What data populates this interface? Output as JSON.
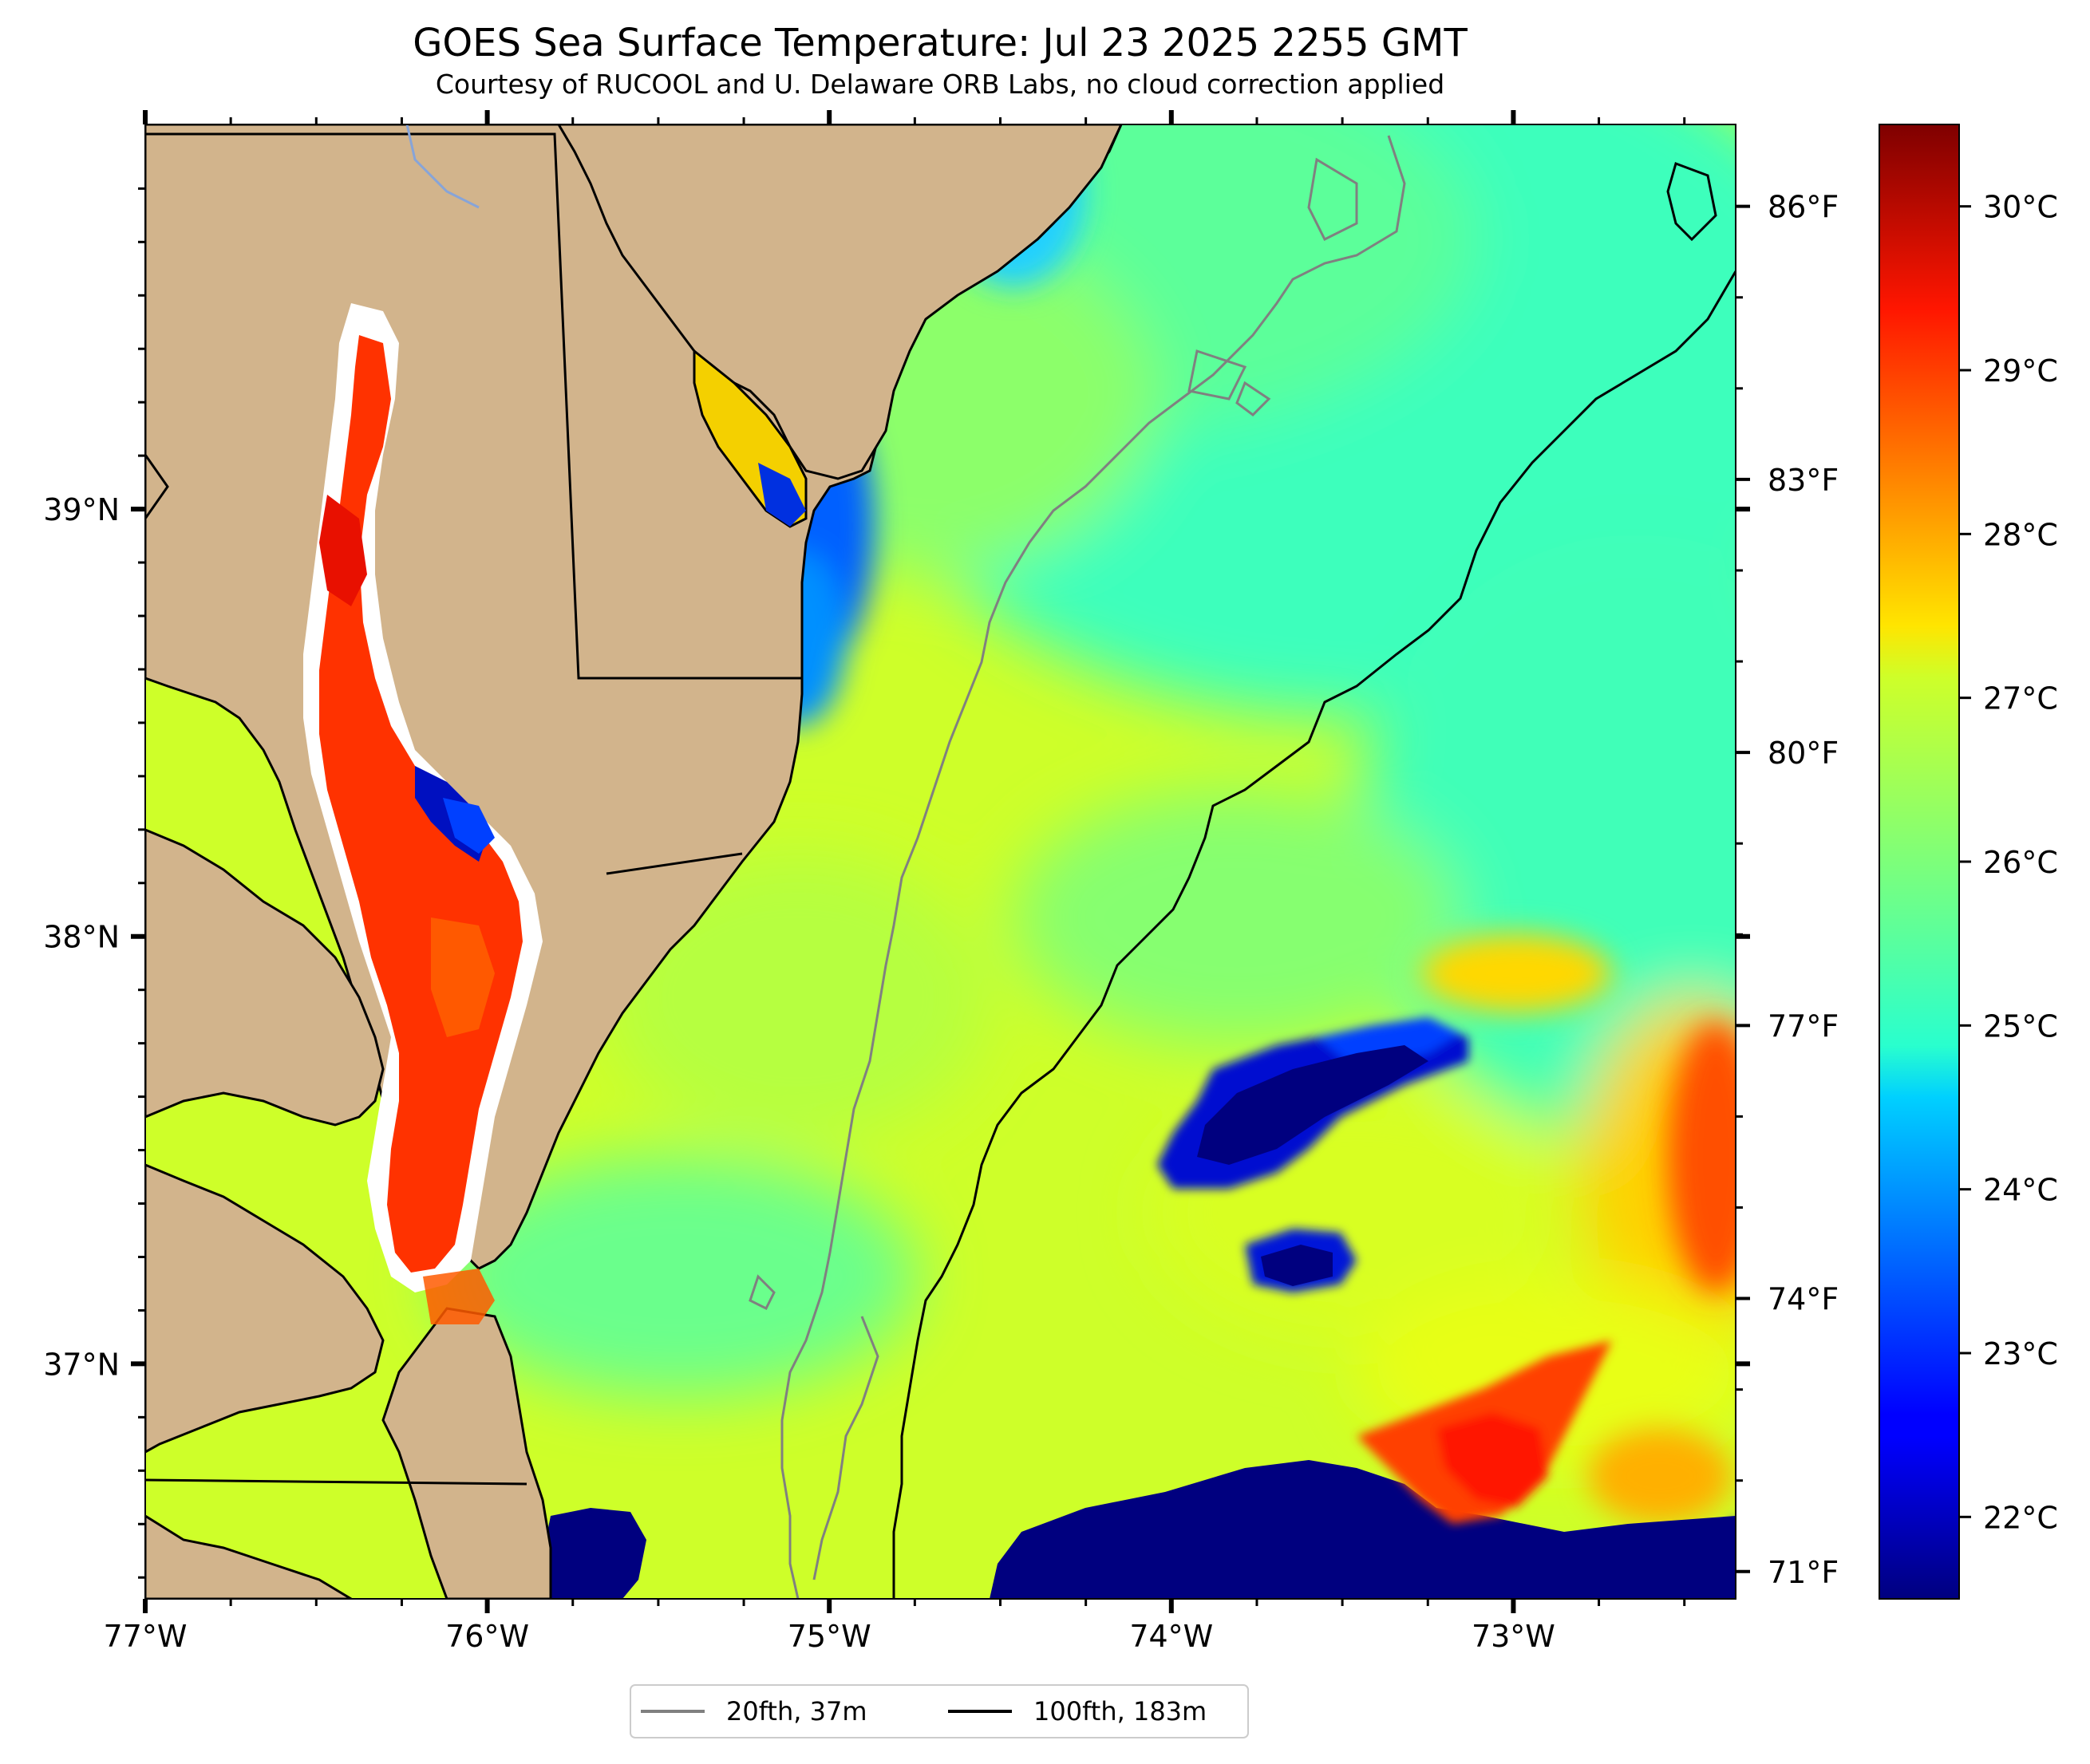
{
  "title": "GOES Sea Surface Temperature: Jul 23 2025 2255 GMT",
  "subtitle": "Courtesy of RUCOOL and U. Delaware ORB Labs, no cloud correction applied",
  "map": {
    "lon_range": [
      -77.0,
      -72.35
    ],
    "lat_range": [
      36.45,
      39.9
    ],
    "land_color": "#d2b48c",
    "coast_color": "#ffffff",
    "x_ticks": [
      {
        "value": -77,
        "label": "77°W"
      },
      {
        "value": -76,
        "label": "76°W"
      },
      {
        "value": -75,
        "label": "75°W"
      },
      {
        "value": -74,
        "label": "74°W"
      },
      {
        "value": -73,
        "label": "73°W"
      }
    ],
    "y_ticks": [
      {
        "value": 39,
        "label": "39°N"
      },
      {
        "value": 38,
        "label": "38°N"
      },
      {
        "value": 37,
        "label": "37°N"
      }
    ],
    "f_ticks": [
      {
        "value": 86,
        "label": "86°F"
      },
      {
        "value": 83,
        "label": "83°F"
      },
      {
        "value": 80,
        "label": "80°F"
      },
      {
        "value": 77,
        "label": "77°F"
      },
      {
        "value": 74,
        "label": "74°F"
      },
      {
        "value": 71,
        "label": "71°F"
      }
    ]
  },
  "colorbar": {
    "colormap": "jet",
    "min_c": 21.5,
    "max_c": 30.5,
    "ticks": [
      {
        "value": 22,
        "label": "22°C"
      },
      {
        "value": 23,
        "label": "23°C"
      },
      {
        "value": 24,
        "label": "24°C"
      },
      {
        "value": 25,
        "label": "25°C"
      },
      {
        "value": 26,
        "label": "26°C"
      },
      {
        "value": 27,
        "label": "27°C"
      },
      {
        "value": 28,
        "label": "28°C"
      },
      {
        "value": 29,
        "label": "29°C"
      },
      {
        "value": 30,
        "label": "30°C"
      }
    ]
  },
  "legend": {
    "items": [
      {
        "label": "20fth, 37m",
        "color": "#808080"
      },
      {
        "label": "100fth, 183m",
        "color": "#000000"
      }
    ]
  }
}
